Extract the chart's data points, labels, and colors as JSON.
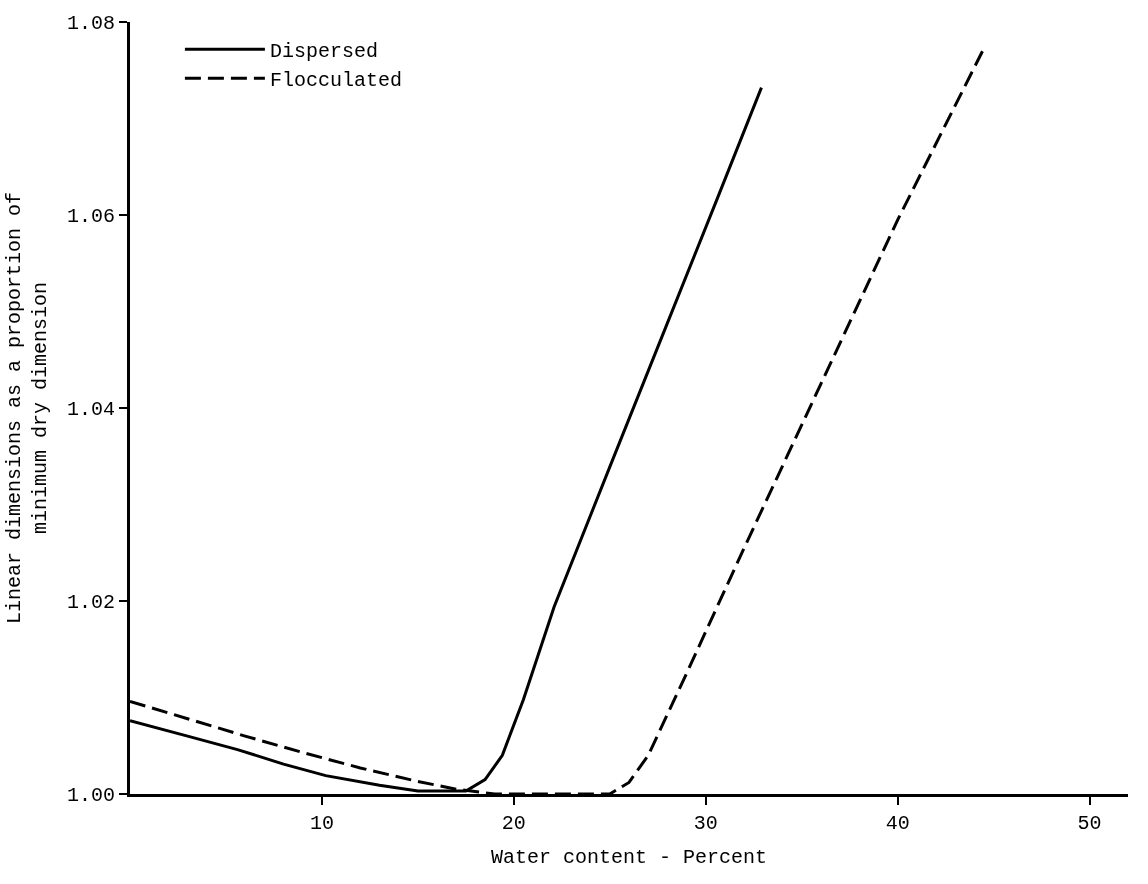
{
  "chart_data": {
    "type": "line",
    "xlabel": "Water content - Percent",
    "ylabel": "Linear dimensions as a proportion of\nminimum dry dimension",
    "xlim": [
      0,
      52
    ],
    "xticks": [
      10,
      20,
      30,
      40,
      50
    ],
    "ylim": [
      1.0,
      1.08
    ],
    "yticks": [
      {
        "value": 1.0,
        "label": "1.00"
      },
      {
        "value": 1.02,
        "label": "1.02"
      },
      {
        "value": 1.04,
        "label": "1.04"
      },
      {
        "value": 1.06,
        "label": "1.06"
      },
      {
        "value": 1.08,
        "label": "1.08"
      }
    ],
    "legend": "top left",
    "marker": "none",
    "series": [
      {
        "name": "Dispersed",
        "color": "#000000",
        "line_style": "solid",
        "x": [
          0,
          3,
          5.6,
          8,
          10.2,
          13,
          15,
          17.5,
          18.5,
          19.4,
          20.5,
          22.1,
          25,
          28,
          30.5,
          32.9
        ],
        "values": [
          1.0076,
          1.006,
          1.0046,
          1.0031,
          1.0019,
          1.0009,
          1.0003,
          1.0003,
          1.0015,
          1.004,
          1.0098,
          1.0194,
          1.0339,
          1.0488,
          1.0612,
          1.0732
        ]
      },
      {
        "name": "Flocculated",
        "color": "#000000",
        "line_style": "dashed",
        "x": [
          0,
          3,
          6,
          9,
          12,
          15,
          17,
          19,
          22,
          25,
          26,
          27,
          29,
          32,
          36,
          40,
          44.5
        ],
        "values": [
          1.0096,
          1.0078,
          1.006,
          1.0043,
          1.0027,
          1.0013,
          1.0005,
          1.0,
          1.0,
          1.0,
          1.0012,
          1.004,
          1.0125,
          1.0255,
          1.0425,
          1.0595,
          1.0773
        ]
      }
    ]
  }
}
